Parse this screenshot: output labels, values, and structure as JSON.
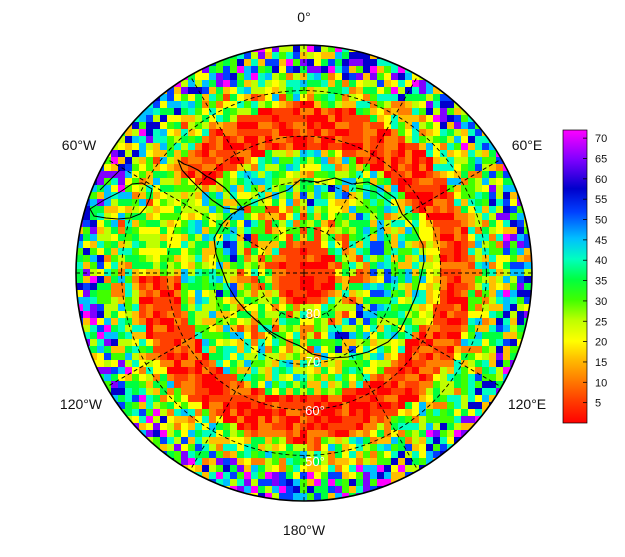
{
  "map": {
    "projection": "south-polar-stereographic",
    "longitude_labels": {
      "top": "0°",
      "upper_left": "60°W",
      "upper_right": "60°E",
      "lower_left": "120°W",
      "lower_right": "120°E",
      "bottom": "180°W"
    },
    "latitude_labels": [
      "80",
      "70",
      "60°",
      "50°"
    ],
    "latitude_circles": [
      -80,
      -70,
      -60,
      -50
    ],
    "outer_latitude": -40,
    "meridians_deg": [
      0,
      30,
      60,
      90,
      120,
      150,
      180,
      210,
      240,
      270,
      300,
      330
    ],
    "gridline_style": "dashed",
    "gridline_color": "#000000",
    "coastline": "Antarctica outline",
    "field_pattern": "Low values over the Antarctic interior and a broad ring of low values near 50–60°S; moderate to high values in the 65–75°S ring; mixed values toward the outer edge."
  },
  "colorbar": {
    "orientation": "vertical",
    "position": "right",
    "ticks": [
      "70",
      "65",
      "60",
      "55",
      "50",
      "45",
      "40",
      "35",
      "30",
      "25",
      "20",
      "15",
      "10",
      "5"
    ],
    "min": 0,
    "max": 72,
    "colors": [
      "#ff0000",
      "#ff4000",
      "#ff8000",
      "#ffbf00",
      "#ffff00",
      "#bfff00",
      "#40ff00",
      "#00ff40",
      "#00ffbf",
      "#00bfff",
      "#0040ff",
      "#0000cc",
      "#8000ff",
      "#ff00ff"
    ]
  }
}
